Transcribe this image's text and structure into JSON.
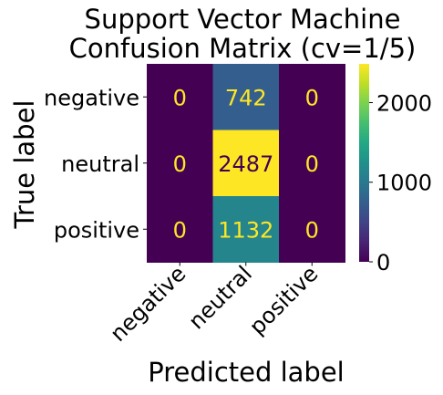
{
  "chart_data": {
    "type": "heatmap",
    "title_lines": [
      "Support Vector Machine",
      "Confusion Matrix (cv=1/5)"
    ],
    "xlabel": "Predicted label",
    "ylabel": "True label",
    "x_categories": [
      "negative",
      "neutral",
      "positive"
    ],
    "y_categories": [
      "negative",
      "neutral",
      "positive"
    ],
    "values": [
      [
        0,
        742,
        0
      ],
      [
        0,
        2487,
        0
      ],
      [
        0,
        1132,
        0
      ]
    ],
    "colormap": "viridis",
    "vmin": 0,
    "vmax": 2487,
    "colorbar_ticks": [
      0,
      1000,
      2000
    ],
    "text_color_low": "#fde725",
    "text_color_high": "#440154"
  }
}
